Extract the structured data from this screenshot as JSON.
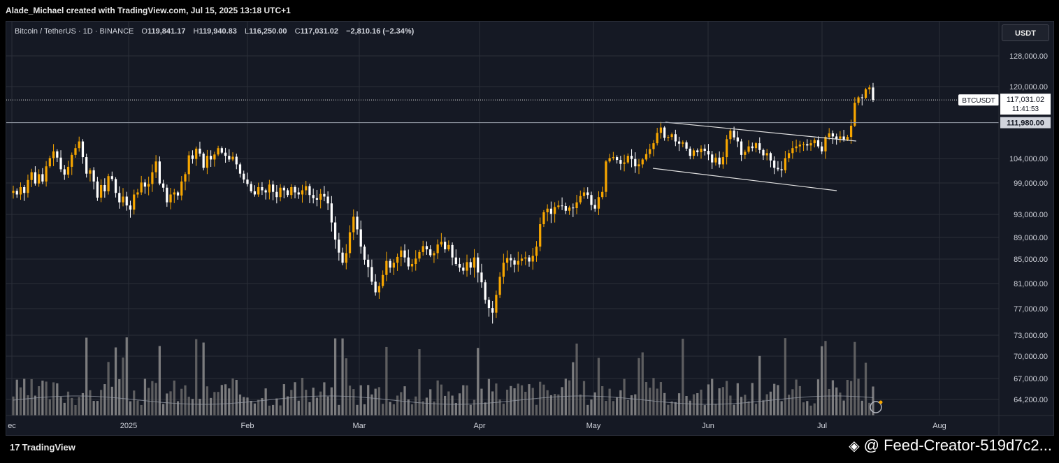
{
  "header": {
    "credit": "Alade_Michael created with TradingView.com, Jul 15, 2025 13:18 UTC+1"
  },
  "legend": {
    "symbol": "Bitcoin / TetherUS · 1D · BINANCE",
    "open_label": "O",
    "open": "119,841.17",
    "high_label": "H",
    "high": "119,940.83",
    "low_label": "L",
    "low": "116,250.00",
    "close_label": "C",
    "close": "117,031.02",
    "change": "−2,810.16 (−2.34%)"
  },
  "currency_button": "USDT",
  "price_tag": {
    "symbol": "BTCUSDT",
    "price": "117,031.02",
    "countdown": "11:41:53"
  },
  "level_tag": "111,980.00",
  "footer": {
    "logo": "TradingView",
    "watermark": "@ Feed-Creator-519d7c2..."
  },
  "colors": {
    "up": "#f7a600",
    "down": "#ffffff",
    "background": "#151924",
    "grid": "#2a2e39"
  },
  "icons": {
    "binance": "binance-diamond-icon",
    "tradingview": "tv-logo-icon",
    "lightning": "lightning-icon"
  },
  "chart_data": {
    "type": "candlestick",
    "y_ticks": [
      "128,000.00",
      "120,000.00",
      "104,000.00",
      "99,000.00",
      "93,000.00",
      "89,000.00",
      "85,000.00",
      "81,000.00",
      "77,000.00",
      "73,000.00",
      "70,000.00",
      "67,000.00",
      "64,200.00"
    ],
    "x_ticks": [
      "ec",
      "2025",
      "Feb",
      "Mar",
      "Apr",
      "May",
      "Jun",
      "Jul",
      "Aug"
    ],
    "horizontal_level": 111980,
    "last_price": 117031.02,
    "closes": [
      97500,
      96800,
      98200,
      97100,
      99600,
      101200,
      98900,
      100800,
      99300,
      102400,
      104100,
      105600,
      104200,
      101800,
      100700,
      102300,
      104800,
      106300,
      107800,
      104300,
      100900,
      101600,
      99300,
      96200,
      98600,
      97400,
      100400,
      99800,
      97100,
      95300,
      96400,
      94700,
      93900,
      96800,
      97200,
      99100,
      98300,
      98800,
      101200,
      103400,
      98900,
      98100,
      95300,
      96800,
      97200,
      96600,
      99300,
      100800,
      104700,
      103900,
      106200,
      105100,
      102100,
      104600,
      103800,
      104900,
      106300,
      105300,
      104600,
      103800,
      104400,
      102800,
      100900,
      99700,
      98800,
      97400,
      96800,
      98200,
      97600,
      97200,
      98700,
      97300,
      96300,
      98100,
      97600,
      96700,
      98200,
      97200,
      96800,
      97600,
      98400,
      96700,
      96100,
      95800,
      96900,
      96400,
      95100,
      91600,
      88600,
      86200,
      84400,
      86100,
      89900,
      92600,
      90400,
      87300,
      84900,
      83700,
      81300,
      79600,
      80600,
      82400,
      84700,
      83600,
      84400,
      85400,
      86600,
      85300,
      83800,
      84200,
      85100,
      86300,
      87400,
      86800,
      85700,
      86100,
      87700,
      88200,
      86800,
      87600,
      85300,
      84200,
      83600,
      83100,
      84500,
      83600,
      85300,
      82800,
      81200,
      78400,
      77100,
      76400,
      79200,
      82100,
      84400,
      85200,
      84800,
      84100,
      84700,
      85100,
      85300,
      84600,
      85600,
      87300,
      91300,
      93400,
      94100,
      93100,
      94400,
      94700,
      94600,
      93700,
      94300,
      94200,
      95300,
      96500,
      97200,
      96700,
      94800,
      94100,
      96300,
      97300,
      103400,
      104100,
      104300,
      103700,
      102900,
      103200,
      104600,
      103900,
      102400,
      102800,
      103800,
      105000,
      106100,
      107400,
      109700,
      110900,
      108600,
      108800,
      109400,
      107800,
      107300,
      107600,
      106200,
      104600,
      105800,
      105400,
      106200,
      105700,
      104900,
      103200,
      104200,
      102800,
      104300,
      108300,
      110200,
      108700,
      107800,
      104800,
      105500,
      106700,
      106300,
      107400,
      105900,
      104700,
      105200,
      103600,
      102100,
      101800,
      101600,
      104100,
      105200,
      106300,
      106700,
      107100,
      107200,
      106900,
      107400,
      108100,
      106700,
      105600,
      108800,
      109600,
      108900,
      108400,
      108900,
      108200,
      108800,
      111300,
      116400,
      117600,
      117500,
      119400,
      119800,
      117031
    ]
  }
}
